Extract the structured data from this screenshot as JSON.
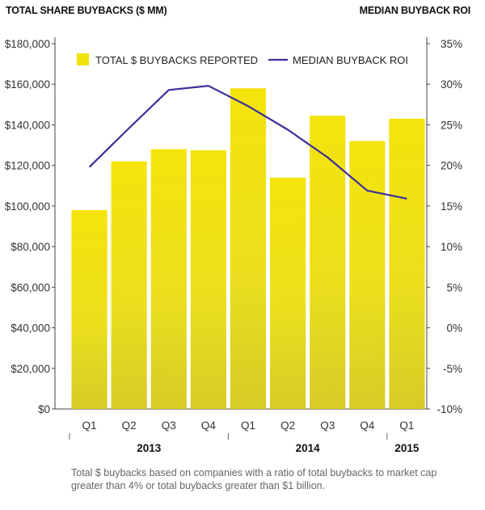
{
  "chart_data": {
    "type": "bar",
    "left_title": "TOTAL SHARE BUYBACKS ($ MM)",
    "right_title": "MEDIAN BUYBACK ROI",
    "categories": [
      "Q1",
      "Q2",
      "Q3",
      "Q4",
      "Q1",
      "Q2",
      "Q3",
      "Q4",
      "Q1"
    ],
    "years": [
      {
        "label": "2013",
        "span": [
          0,
          3
        ]
      },
      {
        "label": "2014",
        "span": [
          4,
          7
        ]
      },
      {
        "label": "2015",
        "span": [
          8,
          8
        ]
      }
    ],
    "series": [
      {
        "name": "TOTAL $ BUYBACKS REPORTED",
        "type": "bar",
        "axis": "left",
        "color": "#f2e20d",
        "values": [
          98000,
          122000,
          128000,
          127500,
          158000,
          114000,
          144500,
          132000,
          143000
        ]
      },
      {
        "name": "MEDIAN BUYBACK ROI",
        "type": "line",
        "axis": "right",
        "color": "#3b2f99",
        "values": [
          19.8,
          24.6,
          29.3,
          29.8,
          27.3,
          24.4,
          21.0,
          16.9,
          15.9
        ]
      }
    ],
    "y_left": {
      "min": 0,
      "max": 180000,
      "ticks": [
        0,
        20000,
        40000,
        60000,
        80000,
        100000,
        120000,
        140000,
        160000,
        180000
      ],
      "tick_labels": [
        "$0",
        "$20,000",
        "$40,000",
        "$60,000",
        "$80,000",
        "$100,000",
        "$120,000",
        "$140,000",
        "$160,000",
        "$180,000"
      ]
    },
    "y_right": {
      "min": -10,
      "max": 35,
      "ticks": [
        -10,
        -5,
        0,
        5,
        10,
        15,
        20,
        25,
        30,
        35
      ],
      "tick_labels": [
        "-10%",
        "-5%",
        "0%",
        "5%",
        "10%",
        "15%",
        "20%",
        "25%",
        "30%",
        "35%"
      ]
    },
    "grid": false,
    "legend_position": "top-inside"
  },
  "footnote": "Total $ buybacks based on companies with a ratio of total buybacks to market cap greater than 4% or total buybacks greater than $1 billion."
}
